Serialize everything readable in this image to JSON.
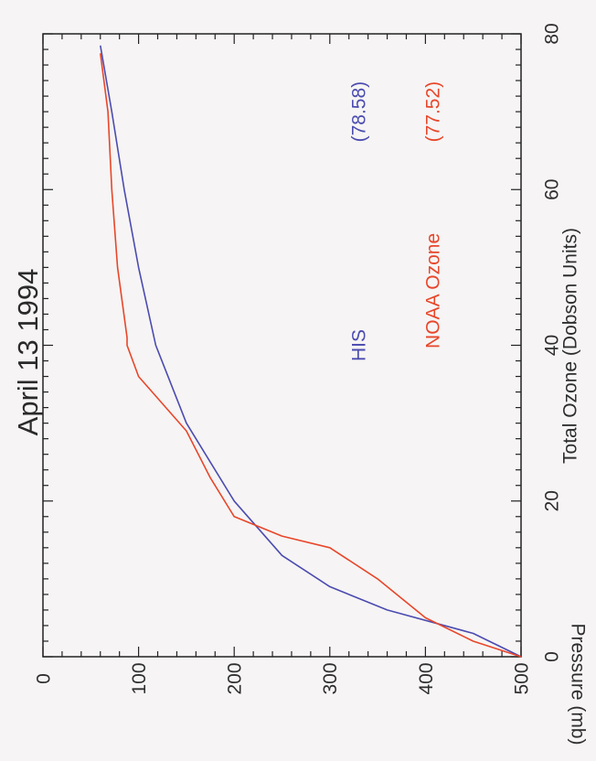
{
  "chart_data": {
    "type": "line",
    "title": "April 13 1994",
    "xlabel": "Total Ozone (Dobson Units)",
    "ylabel": "Pressure (mb)",
    "xlim": [
      0,
      80
    ],
    "ylim": [
      0,
      500
    ],
    "y_reversed": true,
    "orientation": "rotated-90-counterclockwise",
    "x_ticks": [
      "0",
      "20",
      "40",
      "60",
      "80"
    ],
    "y_ticks": [
      "0",
      "100",
      "200",
      "300",
      "400",
      "500"
    ],
    "grid": false,
    "legend_position": "inside-plot",
    "series": [
      {
        "name": "HIS",
        "total_label": "(78.58)",
        "color": "#4b4bb0",
        "points": [
          {
            "x": 0,
            "y": 500
          },
          {
            "x": 3,
            "y": 450
          },
          {
            "x": 6,
            "y": 360
          },
          {
            "x": 9,
            "y": 300
          },
          {
            "x": 13,
            "y": 250
          },
          {
            "x": 20,
            "y": 200
          },
          {
            "x": 30,
            "y": 150
          },
          {
            "x": 40,
            "y": 118
          },
          {
            "x": 50,
            "y": 100
          },
          {
            "x": 60,
            "y": 85
          },
          {
            "x": 70,
            "y": 72
          },
          {
            "x": 78.5,
            "y": 60
          }
        ]
      },
      {
        "name": "NOAA Ozone",
        "total_label": "(77.52)",
        "color": "#e8462a",
        "points": [
          {
            "x": 0,
            "y": 500
          },
          {
            "x": 2,
            "y": 450
          },
          {
            "x": 5,
            "y": 400
          },
          {
            "x": 10,
            "y": 350
          },
          {
            "x": 14,
            "y": 300
          },
          {
            "x": 15.5,
            "y": 250
          },
          {
            "x": 18,
            "y": 200
          },
          {
            "x": 23,
            "y": 175
          },
          {
            "x": 29,
            "y": 150
          },
          {
            "x": 36,
            "y": 100
          },
          {
            "x": 40,
            "y": 88
          },
          {
            "x": 41,
            "y": 88
          },
          {
            "x": 50,
            "y": 78
          },
          {
            "x": 60,
            "y": 72
          },
          {
            "x": 70,
            "y": 68
          },
          {
            "x": 77.5,
            "y": 60
          }
        ]
      }
    ]
  }
}
